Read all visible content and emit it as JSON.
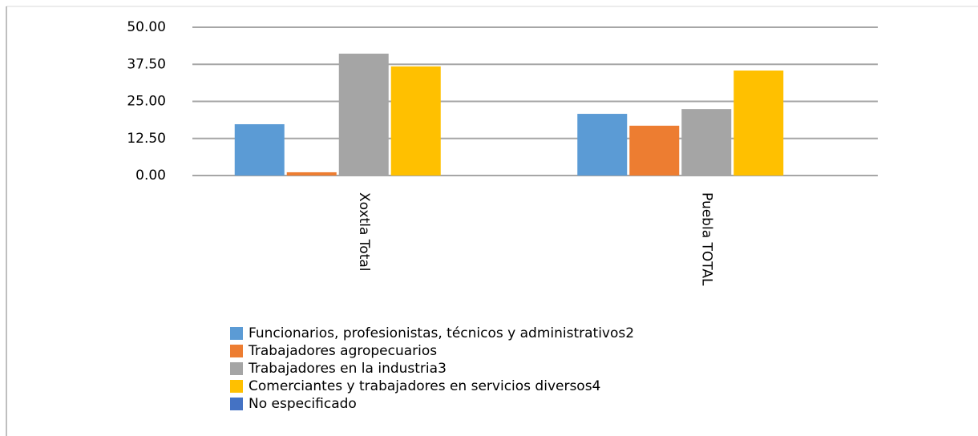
{
  "chart_data": {
    "type": "bar",
    "categories": [
      "Xoxtla Total",
      "Puebla TOTAL"
    ],
    "series": [
      {
        "name": "Funcionarios, profesionistas, técnicos y administrativos2",
        "color": "#5b9bd5",
        "values": [
          17.3,
          20.8
        ]
      },
      {
        "name": "Trabajadores agropecuarios",
        "color": "#ed7d31",
        "values": [
          1.1,
          16.8
        ]
      },
      {
        "name": "Trabajadores en la industria3",
        "color": "#a5a5a5",
        "values": [
          41.1,
          22.4
        ]
      },
      {
        "name": "Comerciantes y trabajadores en servicios diversos4",
        "color": "#ffc000",
        "values": [
          36.8,
          35.4
        ]
      },
      {
        "name": "No especificado",
        "color": "#4472c4",
        "values": [
          0,
          0
        ]
      }
    ],
    "ylim": [
      0,
      50
    ],
    "yticks": [
      {
        "value": 0,
        "label": "0.00"
      },
      {
        "value": 12.5,
        "label": "12.50"
      },
      {
        "value": 25,
        "label": "25.00"
      },
      {
        "value": 37.5,
        "label": "37.50"
      },
      {
        "value": 50,
        "label": "50.00"
      }
    ],
    "grid": true
  }
}
